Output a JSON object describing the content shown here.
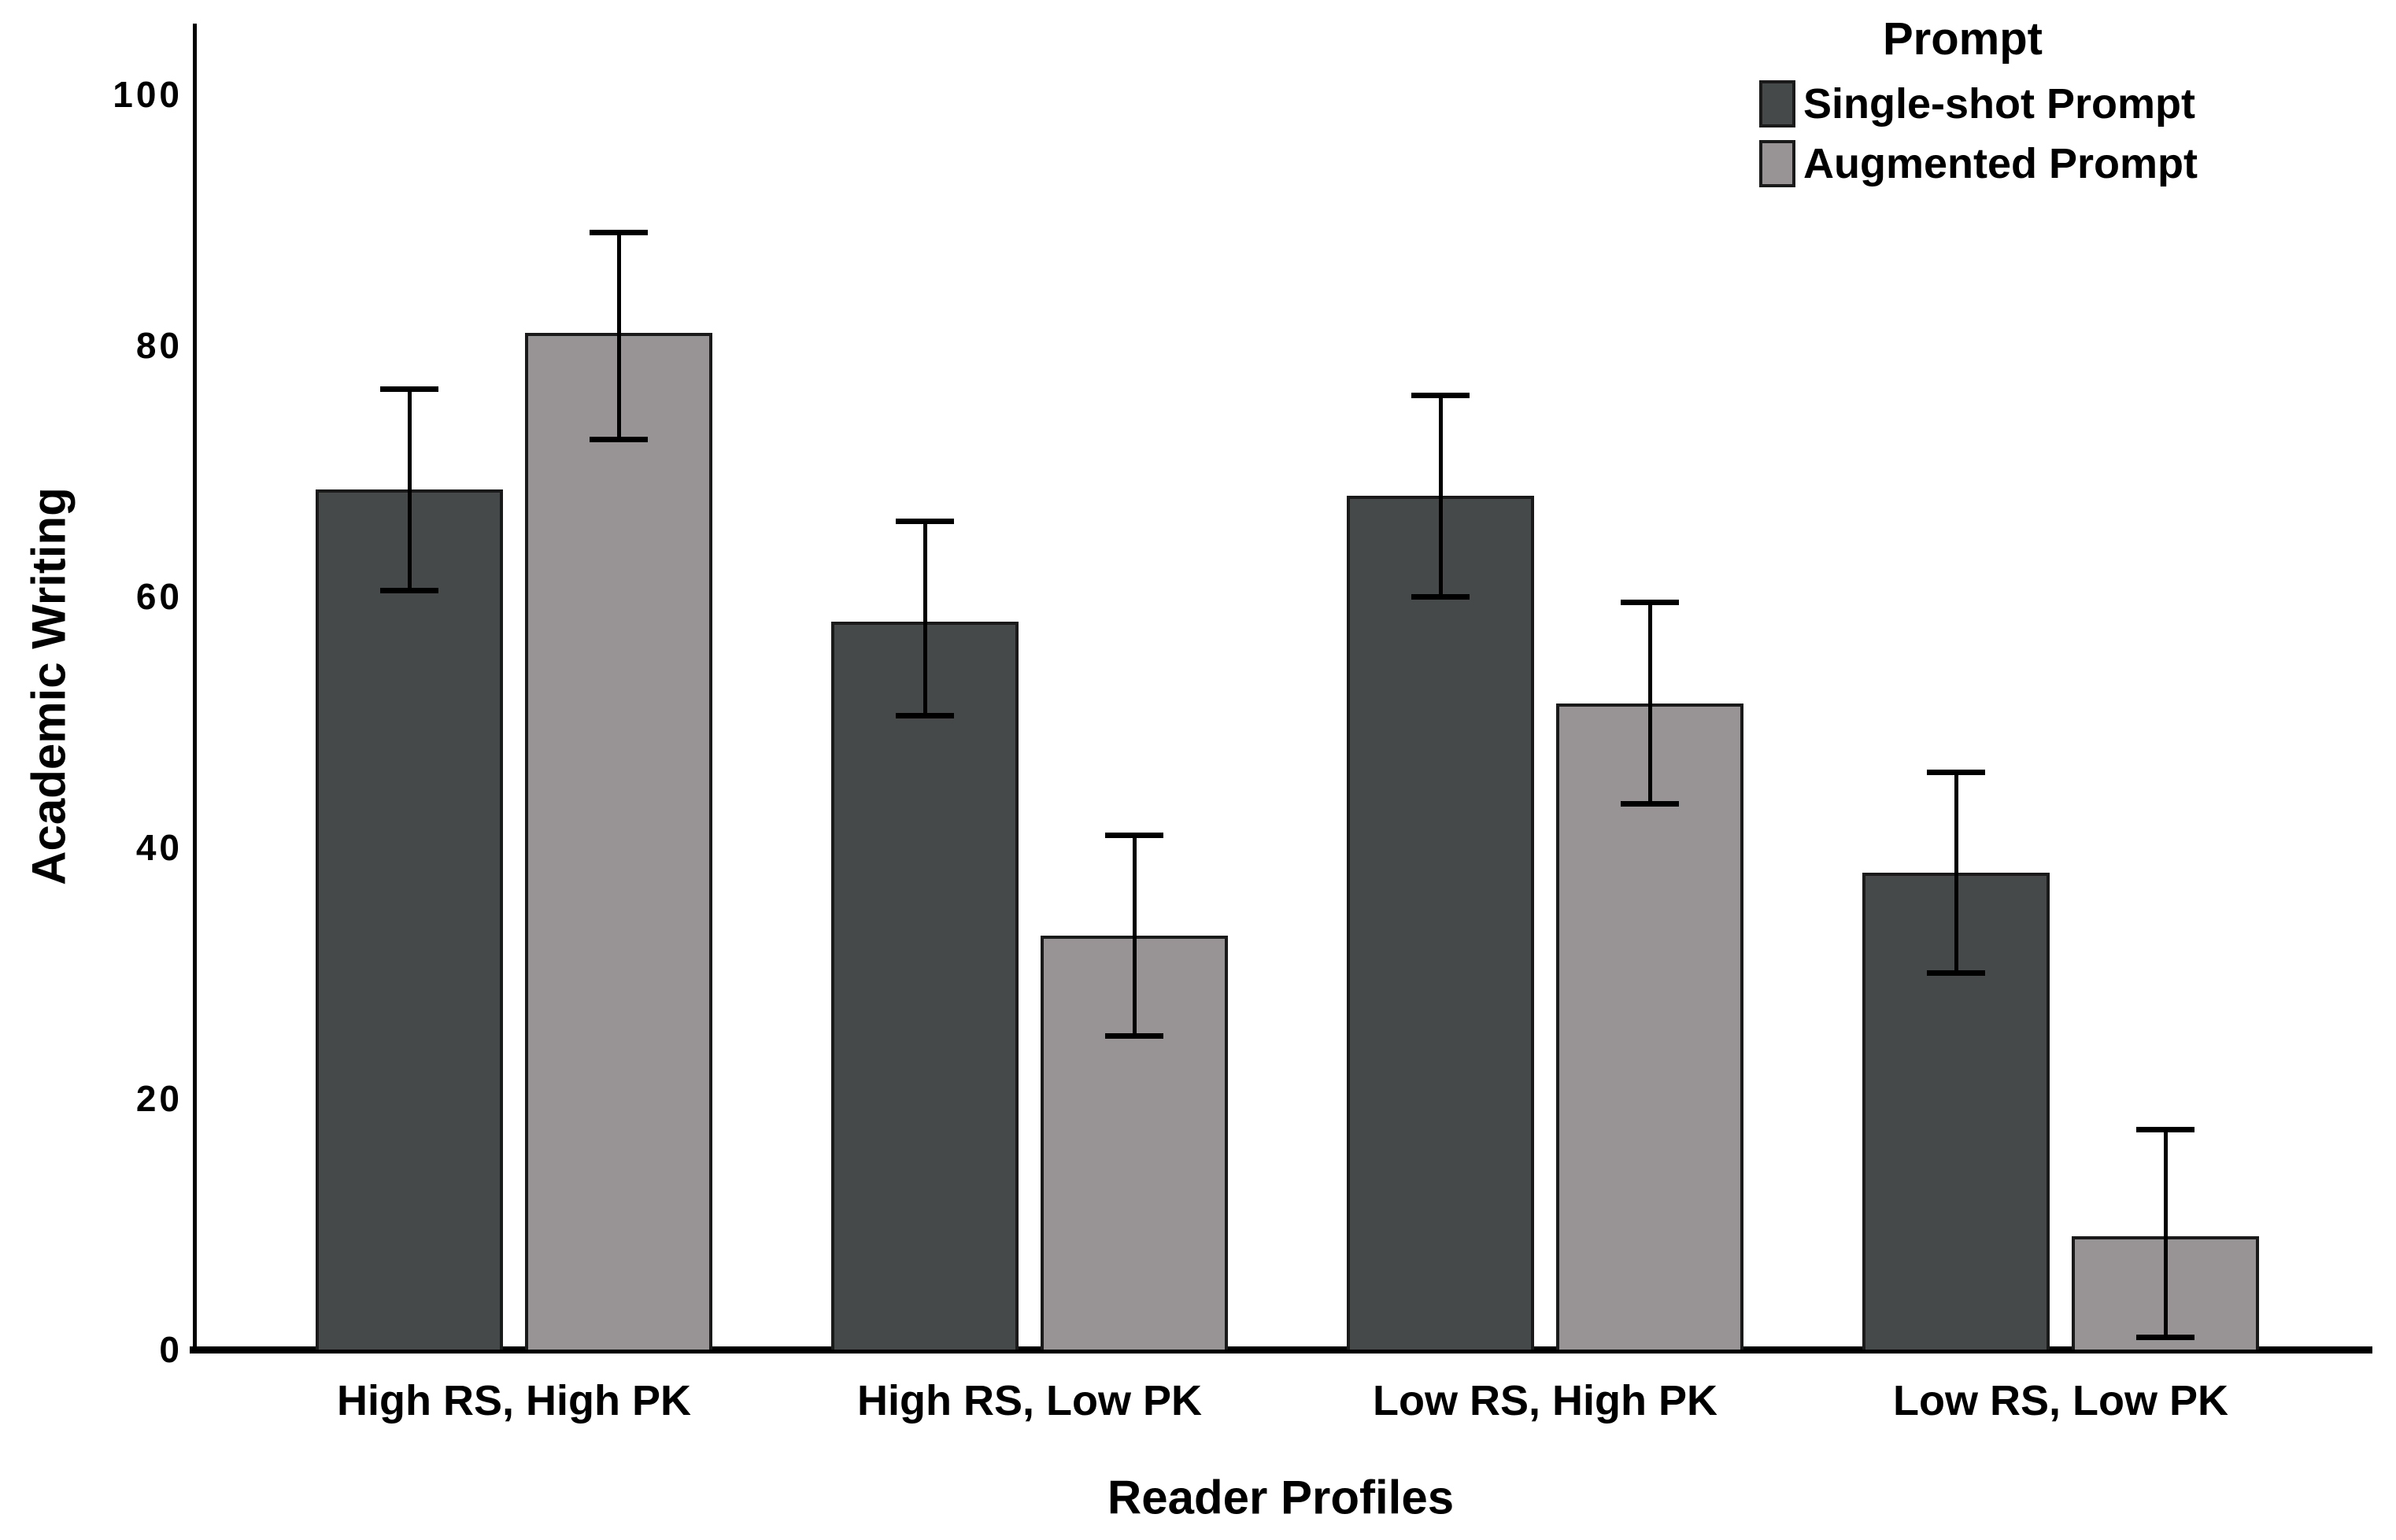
{
  "chart_data": {
    "type": "bar",
    "title": "",
    "xlabel": "Reader Profiles",
    "ylabel": "Academic Writing",
    "ylim": [
      0,
      100
    ],
    "yticks": [
      0,
      20,
      40,
      60,
      80,
      100
    ],
    "grid": false,
    "background": "#ffffff",
    "axis_color": "#000000",
    "text_color": "#000000",
    "legend": {
      "title": "Prompt",
      "position": "top-right"
    },
    "categories": [
      "High RS, High PK",
      "High RS, Low PK",
      "Low RS, High PK",
      "Low RS, Low PK"
    ],
    "series": [
      {
        "name": "Single-shot Prompt",
        "color": "#45494a",
        "border_color": "#1a1a1a",
        "values": [
          68.5,
          58,
          68,
          38
        ],
        "error_low": [
          60.5,
          50.5,
          60,
          30
        ],
        "error_high": [
          76.5,
          66,
          76,
          46
        ]
      },
      {
        "name": "Augmented Prompt",
        "color": "#989495",
        "border_color": "#1a1a1a",
        "values": [
          81,
          33,
          51.5,
          9
        ],
        "error_low": [
          72.5,
          25,
          43.5,
          1
        ],
        "error_high": [
          89,
          41,
          59.5,
          17.5
        ]
      }
    ]
  }
}
